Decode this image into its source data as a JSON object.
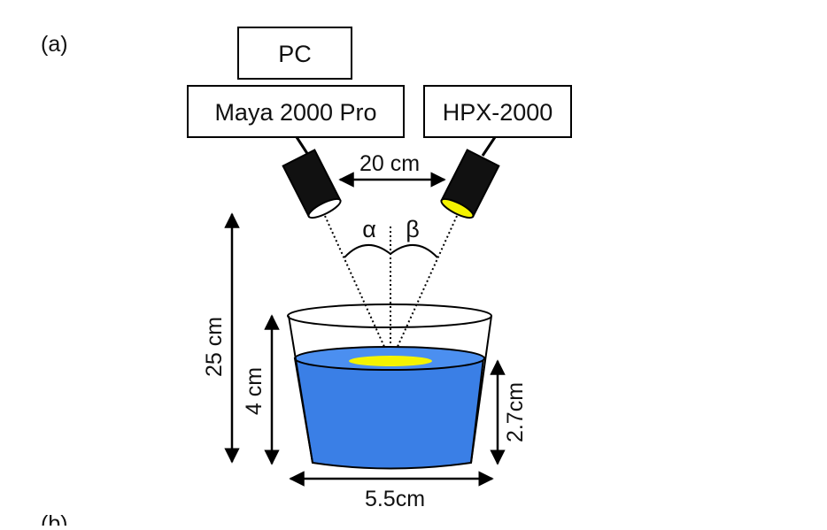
{
  "panel_label_a": "(a)",
  "panel_label_b": "(b)",
  "boxes": {
    "pc": "PC",
    "maya": "Maya 2000 Pro",
    "hpx": "HPX-2000"
  },
  "angles": {
    "alpha": "α",
    "beta": "β"
  },
  "dimensions": {
    "probe_spacing": "20 cm",
    "height_total": "25 cm",
    "beaker_height": "4 cm",
    "water_depth": "2.7cm",
    "bottom_width": "5.5cm"
  },
  "colors": {
    "water": "#3a7fe6",
    "spot": "#f4f300",
    "probe_body": "#111111"
  }
}
